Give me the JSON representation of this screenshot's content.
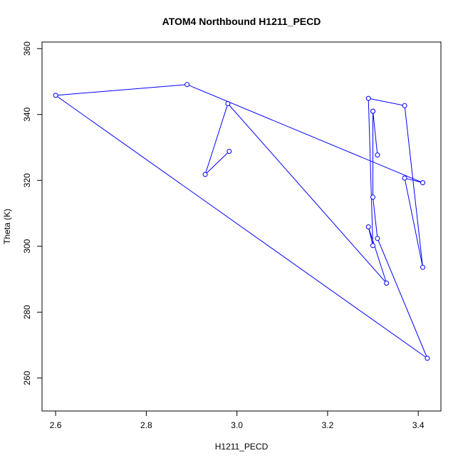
{
  "chart_data": {
    "type": "line",
    "title": "ATOM4 Northbound H1211_PECD",
    "xlabel": "H1211_PECD",
    "ylabel": "Theta (K)",
    "xlim": [
      2.57,
      3.45
    ],
    "ylim": [
      250,
      362
    ],
    "xticks": [
      2.6,
      2.8,
      3.0,
      3.2,
      3.4
    ],
    "yticks": [
      260,
      280,
      300,
      320,
      340,
      360
    ],
    "xtick_labels": [
      "2.6",
      "2.8",
      "3.0",
      "3.2",
      "3.4"
    ],
    "ytick_labels": [
      "260",
      "280",
      "300",
      "320",
      "340",
      "360"
    ],
    "grid": false,
    "color": "#0000ff",
    "markers": "open-circle",
    "x": [
      2.983,
      2.93,
      2.98,
      3.33,
      3.29,
      3.3,
      3.29,
      3.37,
      3.41,
      3.37,
      3.41,
      2.89,
      2.6,
      3.42,
      3.31,
      3.3,
      3.3,
      3.31,
      3.3
    ],
    "y": [
      328.8,
      321.8,
      343.3,
      288.8,
      305.9,
      300.2,
      344.9,
      342.7,
      293.6,
      320.7,
      319.3,
      349.1,
      345.8,
      266.0,
      302.4,
      314.9,
      341.0,
      327.7,
      341.0
    ]
  }
}
